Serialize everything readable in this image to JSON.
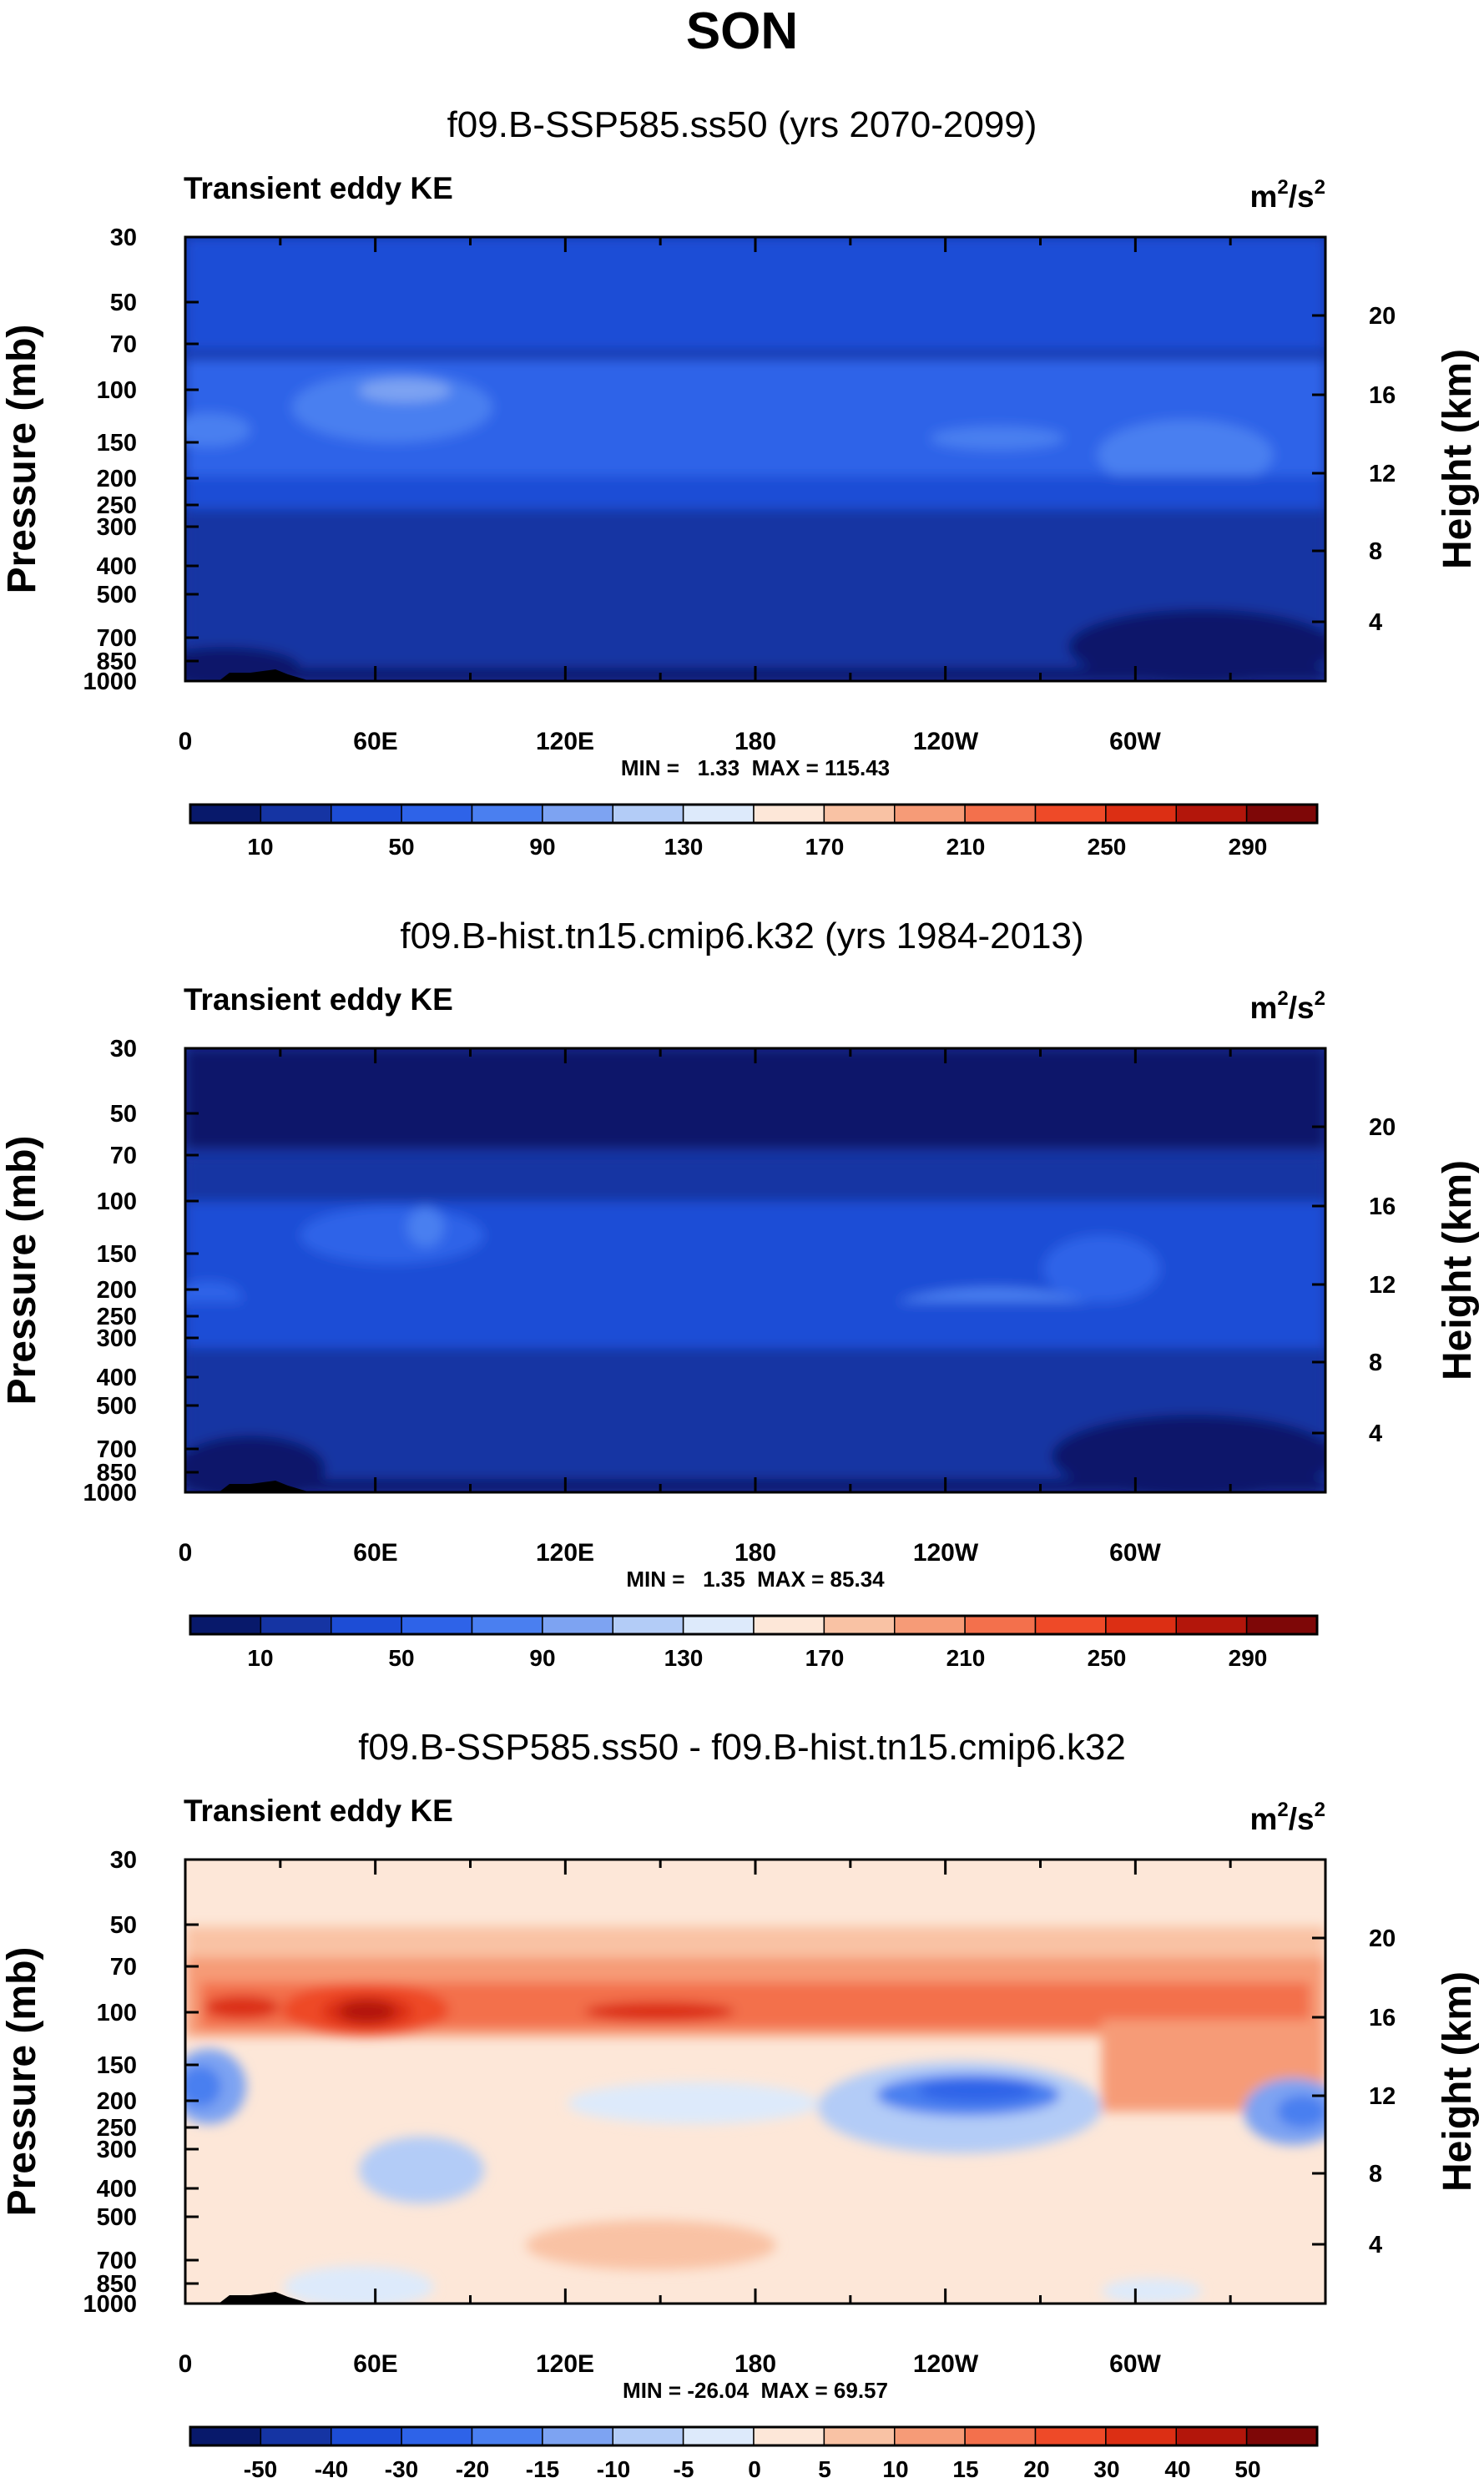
{
  "figure_title": "SON",
  "chart_data": [
    {
      "type": "heatmap",
      "title": "f09.B-SSP585.ss50 (yrs 2070-2099)",
      "left_label": "Transient eddy KE",
      "units_base": "m",
      "units_exp": "2",
      "units_mid": "/s",
      "units_exp2": "2",
      "xlabel": "",
      "ylabel": "Pressure (mb)",
      "ylabel_right": "Height (km)",
      "x_ticks": [
        "0",
        "60E",
        "120E",
        "180",
        "120W",
        "60W"
      ],
      "x_range": [
        0,
        360
      ],
      "y_ticks": [
        "30",
        "50",
        "70",
        "100",
        "150",
        "200",
        "250",
        "300",
        "400",
        "500",
        "700",
        "850",
        "1000"
      ],
      "y_range": [
        1000,
        30
      ],
      "height_ticks": [
        "20",
        "16",
        "12",
        "8",
        "4"
      ],
      "min_max_label": "MIN =   1.33  MAX = 115.43",
      "min": 1.33,
      "max": 115.43,
      "colorbar": {
        "labels": [
          "10",
          "50",
          "90",
          "130",
          "170",
          "210",
          "250",
          "290"
        ],
        "levels": [
          10,
          30,
          50,
          70,
          90,
          110,
          130,
          150,
          170,
          190,
          210,
          230,
          250,
          270,
          290
        ],
        "colors": [
          "#08196b",
          "#1534a3",
          "#1d4dd6",
          "#2e63e8",
          "#4a7ff0",
          "#7da3f2",
          "#b3ccf7",
          "#ddeafb",
          "#fde7d8",
          "#f9c2a4",
          "#f69b77",
          "#f3704c",
          "#ee4a28",
          "#dc2f14",
          "#b3160b",
          "#7e0707"
        ]
      }
    },
    {
      "type": "heatmap",
      "title": "f09.B-hist.tn15.cmip6.k32 (yrs 1984-2013)",
      "left_label": "Transient eddy KE",
      "units_base": "m",
      "units_exp": "2",
      "units_mid": "/s",
      "units_exp2": "2",
      "xlabel": "",
      "ylabel": "Pressure (mb)",
      "ylabel_right": "Height (km)",
      "x_ticks": [
        "0",
        "60E",
        "120E",
        "180",
        "120W",
        "60W"
      ],
      "x_range": [
        0,
        360
      ],
      "y_ticks": [
        "30",
        "50",
        "70",
        "100",
        "150",
        "200",
        "250",
        "300",
        "400",
        "500",
        "700",
        "850",
        "1000"
      ],
      "y_range": [
        1000,
        30
      ],
      "height_ticks": [
        "20",
        "16",
        "12",
        "8",
        "4"
      ],
      "min_max_label": "MIN =   1.35  MAX = 85.34",
      "min": 1.35,
      "max": 85.34,
      "colorbar": {
        "labels": [
          "10",
          "50",
          "90",
          "130",
          "170",
          "210",
          "250",
          "290"
        ],
        "levels": [
          10,
          30,
          50,
          70,
          90,
          110,
          130,
          150,
          170,
          190,
          210,
          230,
          250,
          270,
          290
        ],
        "colors": [
          "#08196b",
          "#1534a3",
          "#1d4dd6",
          "#2e63e8",
          "#4a7ff0",
          "#7da3f2",
          "#b3ccf7",
          "#ddeafb",
          "#fde7d8",
          "#f9c2a4",
          "#f69b77",
          "#f3704c",
          "#ee4a28",
          "#dc2f14",
          "#b3160b",
          "#7e0707"
        ]
      }
    },
    {
      "type": "heatmap",
      "title": "f09.B-SSP585.ss50 - f09.B-hist.tn15.cmip6.k32",
      "left_label": "Transient eddy KE",
      "units_base": "m",
      "units_exp": "2",
      "units_mid": "/s",
      "units_exp2": "2",
      "xlabel": "",
      "ylabel": "Pressure (mb)",
      "ylabel_right": "Height (km)",
      "x_ticks": [
        "0",
        "60E",
        "120E",
        "180",
        "120W",
        "60W"
      ],
      "x_range": [
        0,
        360
      ],
      "y_ticks": [
        "30",
        "50",
        "70",
        "100",
        "150",
        "200",
        "250",
        "300",
        "400",
        "500",
        "700",
        "850",
        "1000"
      ],
      "y_range": [
        1000,
        30
      ],
      "height_ticks": [
        "20",
        "16",
        "12",
        "8",
        "4"
      ],
      "min_max_label": "MIN = -26.04  MAX = 69.57",
      "min": -26.04,
      "max": 69.57,
      "colorbar": {
        "labels": [
          "-50",
          "-40",
          "-30",
          "-20",
          "-15",
          "-10",
          "-5",
          "0",
          "5",
          "10",
          "15",
          "20",
          "30",
          "40",
          "50"
        ],
        "levels": [
          -50,
          -40,
          -30,
          -20,
          -15,
          -10,
          -5,
          0,
          5,
          10,
          15,
          20,
          30,
          40,
          50
        ],
        "colors": [
          "#08196b",
          "#1534a3",
          "#1d4dd6",
          "#2e63e8",
          "#4a7ff0",
          "#7da3f2",
          "#b3ccf7",
          "#ddeafb",
          "#fde7d8",
          "#f9c2a4",
          "#f69b77",
          "#f3704c",
          "#ee4a28",
          "#dc2f14",
          "#b3160b",
          "#7e0707"
        ]
      }
    }
  ]
}
